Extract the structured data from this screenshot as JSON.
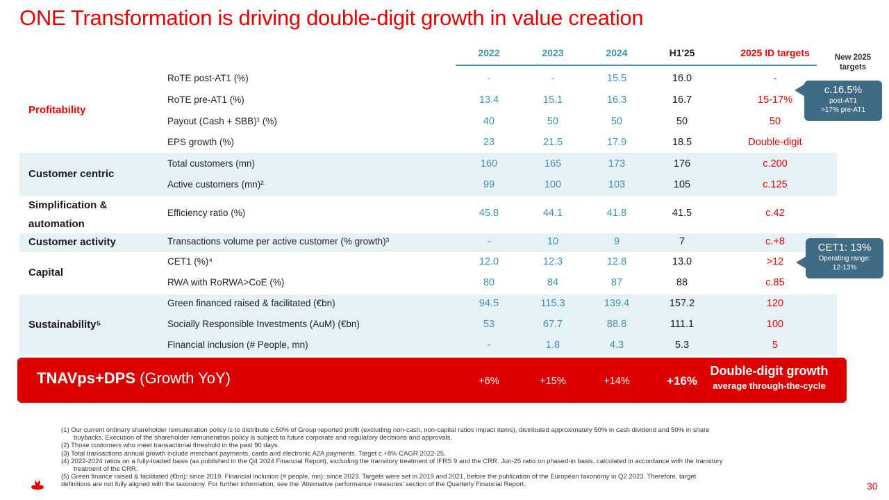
{
  "title": "ONE Transformation is driving double-digit growth in value creation",
  "columns": [
    "2022",
    "2023",
    "2024",
    "H1'25",
    "2025 ID targets"
  ],
  "new_targets_label": "New 2025 targets",
  "categories": {
    "profitability": "Profitability",
    "customer_centric": "Customer centric",
    "simplification": "Simplification & automation",
    "customer_activity": "Customer activity",
    "capital": "Capital",
    "sustainability": "Sustainability⁵"
  },
  "rows": [
    {
      "label": "RoTE post-AT1 (%)",
      "v2022": "-",
      "v2023": "-",
      "v2024": "15.5",
      "h1": "16.0",
      "target": "-"
    },
    {
      "label": "RoTE pre-AT1 (%)",
      "v2022": "13.4",
      "v2023": "15.1",
      "v2024": "16.3",
      "h1": "16.7",
      "target": "15-17%"
    },
    {
      "label": "Payout (Cash + SBB)¹ (%)",
      "v2022": "40",
      "v2023": "50",
      "v2024": "50",
      "h1": "50",
      "target": "50"
    },
    {
      "label": "EPS growth (%)",
      "v2022": "23",
      "v2023": "21.5",
      "v2024": "17.9",
      "h1": "18.5",
      "target": "Double-digit"
    },
    {
      "label": "Total customers (mn)",
      "v2022": "160",
      "v2023": "165",
      "v2024": "173",
      "h1": "176",
      "target": "c.200"
    },
    {
      "label": "Active customers (mn)²",
      "v2022": "99",
      "v2023": "100",
      "v2024": "103",
      "h1": "105",
      "target": "c.125"
    },
    {
      "label": "Efficiency ratio (%)",
      "v2022": "45.8",
      "v2023": "44.1",
      "v2024": "41.8",
      "h1": "41.5",
      "target": "c.42"
    },
    {
      "label": "Transactions volume per active customer (% growth)³",
      "v2022": "-",
      "v2023": "10",
      "v2024": "9",
      "h1": "7",
      "target": "c.+8"
    },
    {
      "label": "CET1 (%)⁴",
      "v2022": "12.0",
      "v2023": "12.3",
      "v2024": "12.8",
      "h1": "13.0",
      "target": ">12"
    },
    {
      "label": "RWA with RoRWA>CoE (%)",
      "v2022": "80",
      "v2023": "84",
      "v2024": "87",
      "h1": "88",
      "target": "c.85"
    },
    {
      "label": "Green financed raised & facilitated (€bn)",
      "v2022": "94.5",
      "v2023": "115.3",
      "v2024": "139.4",
      "h1": "157.2",
      "target": "120"
    },
    {
      "label": "Socially Responsible Investments (AuM) (€bn)",
      "v2022": "53",
      "v2023": "67.7",
      "v2024": "88.8",
      "h1": "111.1",
      "target": "100"
    },
    {
      "label": "Financial inclusion (# People, mn)",
      "v2022": "-",
      "v2023": "1.8",
      "v2024": "4.3",
      "h1": "5.3",
      "target": "5"
    }
  ],
  "callout_rote": {
    "big": "c.16.5%",
    "line1": "post-AT1",
    "line2": ">17% pre-AT1"
  },
  "callout_cet1": {
    "big": "CET1: 13%",
    "line1": "Operating range:",
    "line2": "12-13%"
  },
  "tnav": {
    "label_bold": "TNAVps+DPS",
    "label_normal": "(Growth YoY)",
    "v2022": "+6%",
    "v2023": "+15%",
    "v2024": "+14%",
    "h1": "+16%",
    "target_line1": "Double-digit growth",
    "target_line2": "average through-the-cycle"
  },
  "footnotes": {
    "f1": "(1)  Our current ordinary shareholder remuneration policy is to distribute c.50% of Group reported profit (excluding non-cash, non-capital ratios impact items), distributed approximately 50% in cash dividend and 50% in share",
    "f1b": "buybacks. Execution of the shareholder remuneration policy is subject to future corporate and regulatory decisions and approvals.",
    "f2": "(2) Those customers who meet transactional threshold in the past 90 days.",
    "f3": "(3) Total transactions annual growth include merchant payments, cards and electronic A2A payments. Target c.+8% CAGR 2022-25.",
    "f4": "(4) 2022-2024 ratios on a fully-loaded basis (as published in the Q4 2024 Financial Report), excluding the transitory treatment of IFRS 9 and the CRR. Jun-25 ratio on phased-in basis, calculated in accordance with the transitory",
    "f4b": "treatment of the CRR.",
    "f5": "(5) Green finance raised & facilitated (€bn): since 2019. Financial inclusion (# people, mn): since 2023. Targets were set in 2019 and 2021, before the publication of the European taxonomy in Q2 2023. Therefore, target",
    "f5b": "definitions are not fully aligned with the taxonomy. For further information, see the 'Alternative performance measures' section of the Quarterly Financial Report."
  },
  "page_number": "30",
  "colors": {
    "brand_red": "#e60000",
    "blue": "#3b94b5",
    "band": "#e6f1f5",
    "callout": "#3f6b84"
  }
}
